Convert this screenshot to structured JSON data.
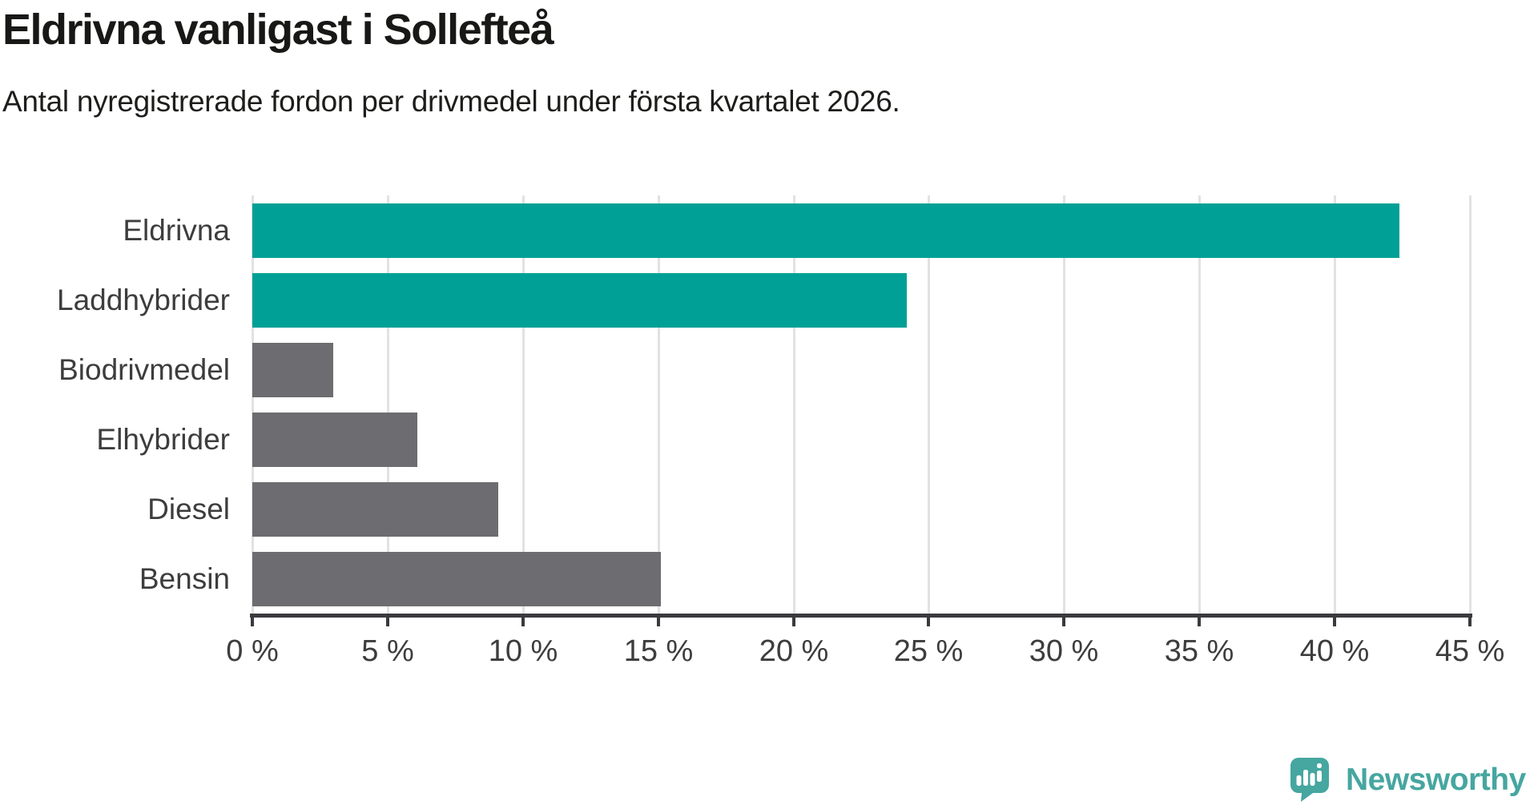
{
  "header": {
    "title": "Eldrivna vanligast i Sollefteå",
    "subtitle": "Antal nyregistrerade fordon per drivmedel under första kvartalet 2026."
  },
  "chart_data": {
    "type": "bar",
    "orientation": "horizontal",
    "title": "Eldrivna vanligast i Sollefteå",
    "subtitle": "Antal nyregistrerade fordon per drivmedel under första kvartalet 2026.",
    "categories": [
      "Eldrivna",
      "Laddhybrider",
      "Biodrivmedel",
      "Elhybrider",
      "Diesel",
      "Bensin"
    ],
    "values": [
      42.4,
      24.2,
      3.0,
      6.1,
      9.1,
      15.1
    ],
    "unit": "%",
    "bar_colors": [
      "#00a096",
      "#00a096",
      "#6c6c71",
      "#6c6c71",
      "#6c6c71",
      "#6c6c71"
    ],
    "highlight_color": "#00a096",
    "default_color": "#6c6c71",
    "xlim": [
      0,
      45
    ],
    "x_ticks": [
      0,
      5,
      10,
      15,
      20,
      25,
      30,
      35,
      40,
      45
    ],
    "x_tick_labels": [
      "0 %",
      "5 %",
      "10 %",
      "15 %",
      "20 %",
      "25 %",
      "30 %",
      "35 %",
      "40 %",
      "45 %"
    ],
    "xlabel": "",
    "ylabel": "",
    "grid": true,
    "gridline_color": "#e2e2e2",
    "axis_color": "#3a3a3e",
    "legend": "none"
  },
  "branding": {
    "logo_text": "Newsworthy",
    "logo_color": "#46a6a0",
    "logo_icon": "speech-bubble-bar-chart-icon"
  }
}
